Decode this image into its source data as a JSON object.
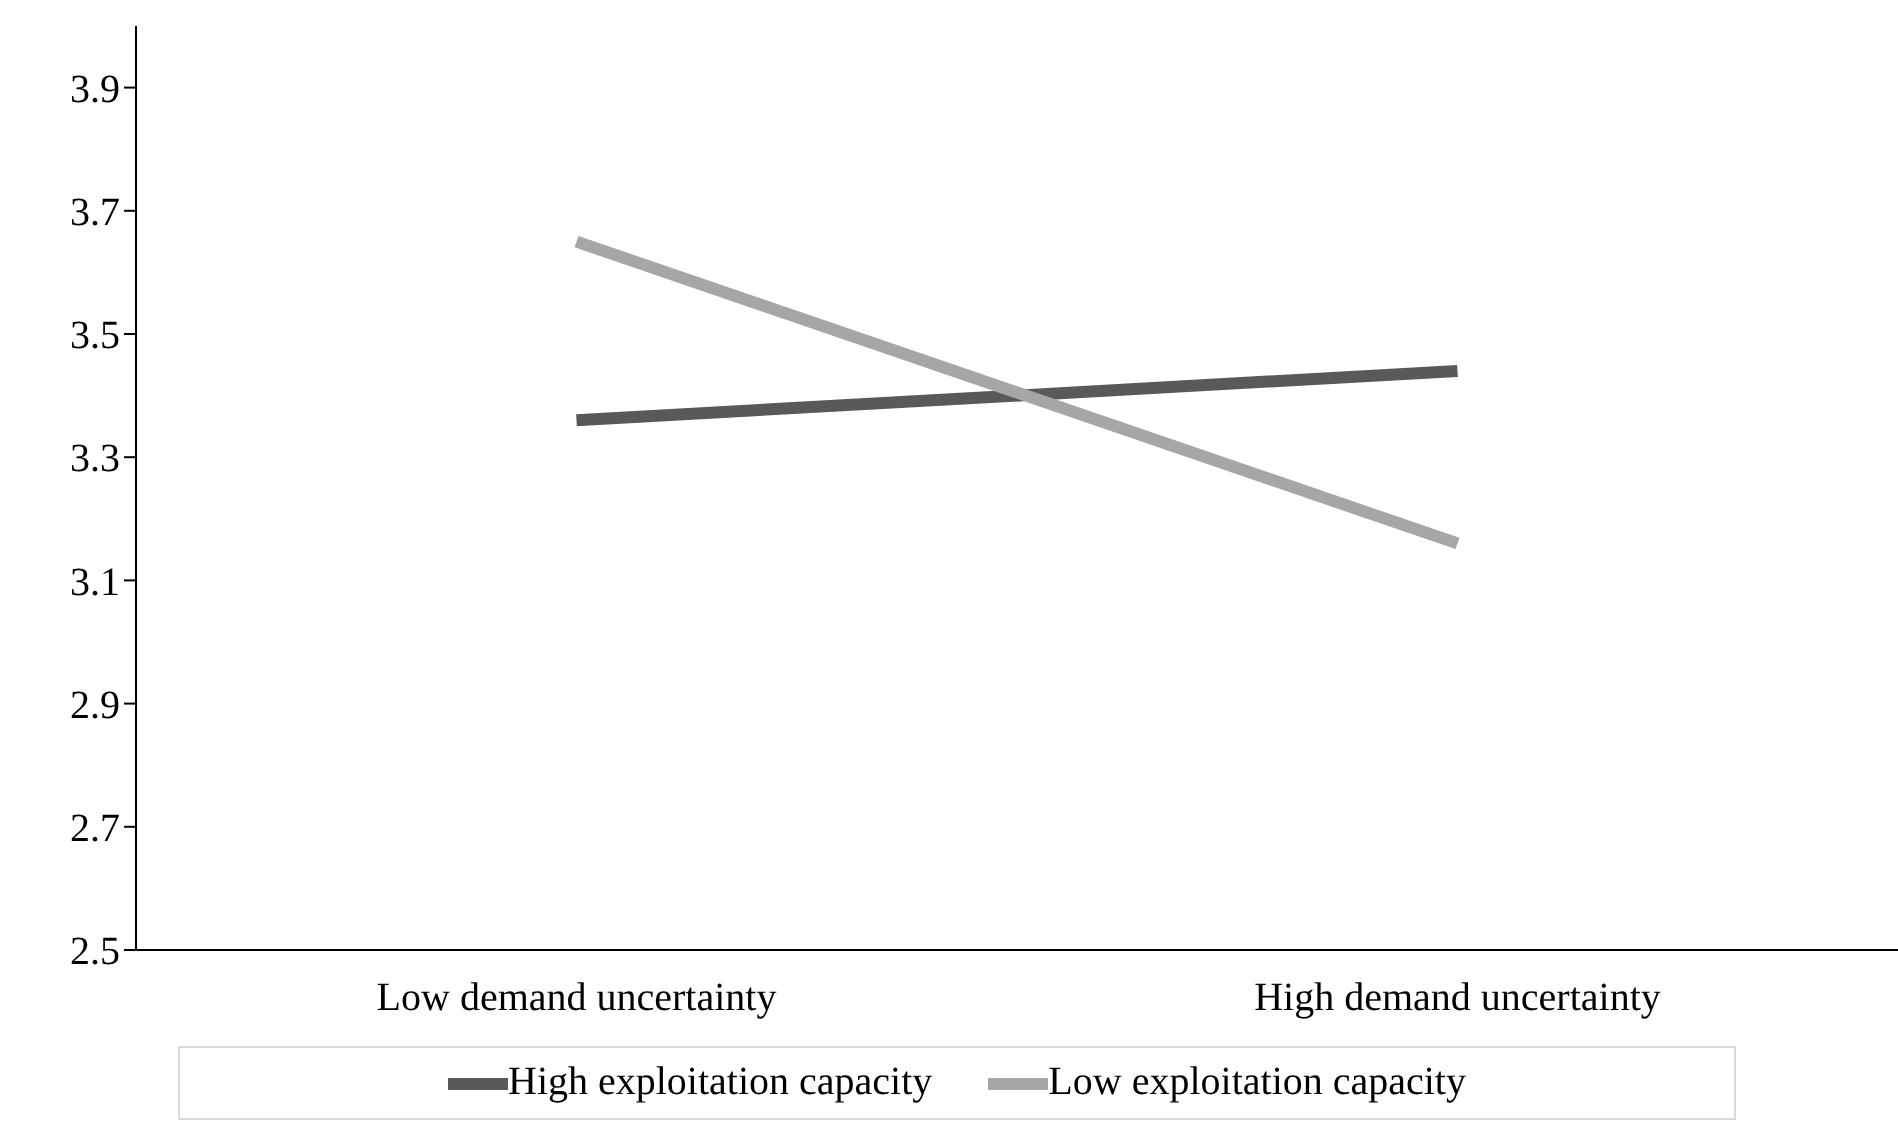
{
  "chart_data": {
    "type": "line",
    "categories": [
      "Low demand uncertainty",
      "High demand uncertainty"
    ],
    "series": [
      {
        "name": "High exploitation capacity",
        "color": "#595959",
        "values": [
          3.36,
          3.44
        ]
      },
      {
        "name": "Low exploitation capacity",
        "color": "#a6a6a6",
        "values": [
          3.65,
          3.16
        ]
      }
    ],
    "ylim": [
      2.5,
      4.0
    ],
    "yticks": [
      2.5,
      2.7,
      2.9,
      3.1,
      3.3,
      3.5,
      3.7,
      3.9
    ],
    "grid": false,
    "legend": "bottom",
    "marker": "none",
    "line_style": "solid"
  }
}
